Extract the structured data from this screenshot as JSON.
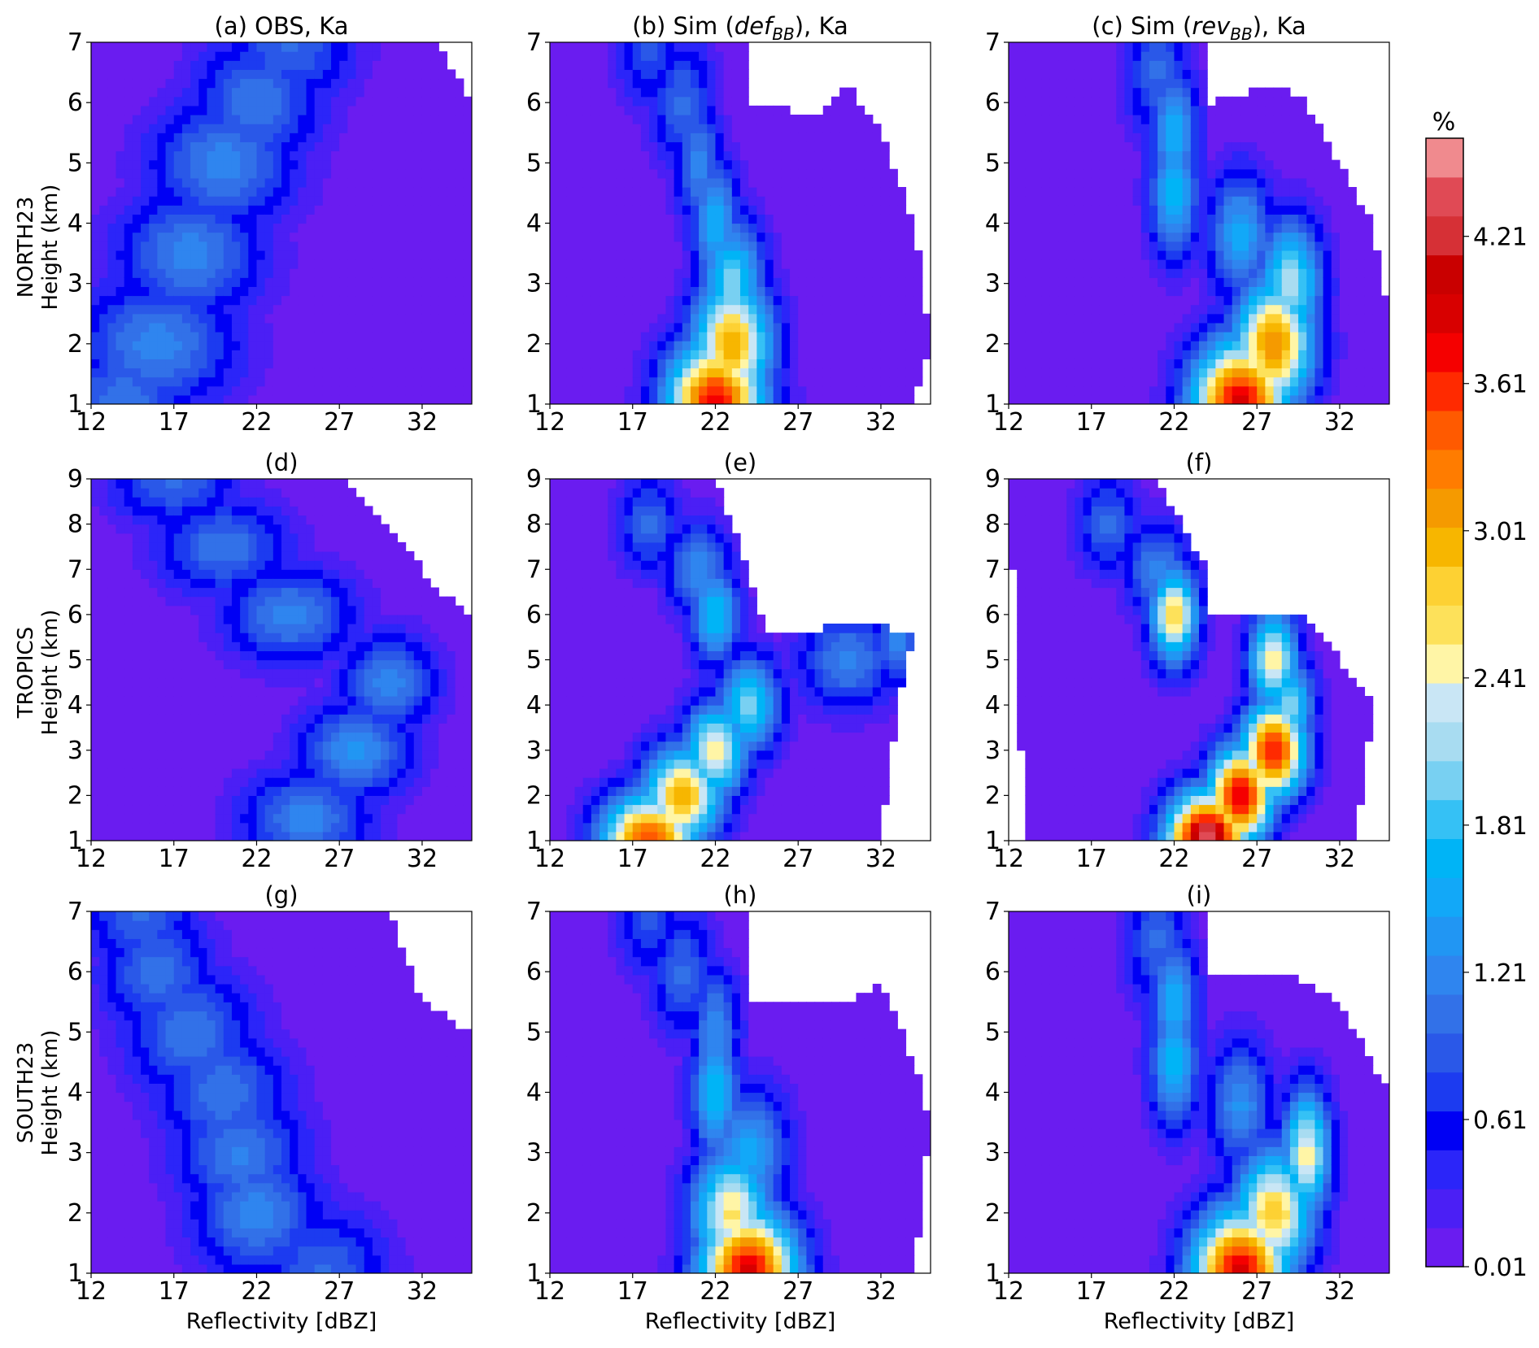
{
  "figure": {
    "row_labels": [
      {
        "region": "NORTH23",
        "axis": "Height (km)"
      },
      {
        "region": "TROPICS",
        "axis": "Height (km)"
      },
      {
        "region": "SOUTH23",
        "axis": "Height (km)"
      }
    ],
    "x_label": "Reflectivity [dBZ]",
    "colorbar": {
      "unit": "%",
      "tick_labels": [
        "0.01",
        "0.61",
        "1.21",
        "1.81",
        "2.41",
        "3.01",
        "3.61",
        "4.21"
      ],
      "tick_values": [
        0.01,
        0.61,
        1.21,
        1.81,
        2.41,
        3.01,
        3.61,
        4.21
      ],
      "range": [
        0.01,
        4.61
      ],
      "levels": 24,
      "colors": [
        "#6a1cf0",
        "#4b1ff5",
        "#2b25f9",
        "#0000f4",
        "#1c3bf0",
        "#2a58e8",
        "#3271e8",
        "#2f85ef",
        "#2196f3",
        "#12a8f8",
        "#00b4f6",
        "#35c1f5",
        "#78d0f2",
        "#a8dcf1",
        "#c9e6f5",
        "#fff5a6",
        "#fde15a",
        "#fdd133",
        "#f7b600",
        "#f59a00",
        "#ff7c00",
        "#ff5a00",
        "#ff2a00",
        "#f50000",
        "#d80000",
        "#c90000",
        "#d63036",
        "#e04a55",
        "#f08a8e"
      ]
    }
  },
  "chart_data": [
    {
      "panel": "a",
      "type": "heatmap",
      "title_parts": [
        {
          "text": "(a) OBS, Ka"
        }
      ],
      "x_ticks": [
        "12",
        "17",
        "22",
        "27",
        "32"
      ],
      "xlim": [
        12,
        35
      ],
      "y_ticks": [
        "1",
        "2",
        "3",
        "4",
        "5",
        "6",
        "7"
      ],
      "ylim": [
        1,
        7
      ],
      "unit": "%",
      "peak": {
        "x": 20,
        "y": 3,
        "value": 1.2
      },
      "ridge": [
        [
          14,
          1
        ],
        [
          16,
          2
        ],
        [
          18,
          3.5
        ],
        [
          20,
          5
        ],
        [
          22,
          6
        ],
        [
          24,
          7
        ]
      ],
      "spread": [
        4,
        5,
        4.5,
        4.5,
        4,
        4
      ],
      "peak_values": [
        1.1,
        1.2,
        1.2,
        1.2,
        1.1,
        1.0
      ],
      "boundary": [
        [
          12,
          1
        ],
        [
          35,
          1
        ],
        [
          35,
          6
        ],
        [
          33,
          7
        ],
        [
          12,
          7
        ]
      ],
      "show_xlabel": false
    },
    {
      "panel": "b",
      "type": "heatmap",
      "title_parts": [
        {
          "text": "(b) Sim ("
        },
        {
          "text": "def",
          "italic": true
        },
        {
          "text": "BB",
          "italic": true,
          "sub": true
        },
        {
          "text": "), Ka"
        }
      ],
      "x_ticks": [
        "12",
        "17",
        "22",
        "27",
        "32"
      ],
      "xlim": [
        12,
        35
      ],
      "y_ticks": [
        "1",
        "2",
        "3",
        "4",
        "5",
        "6",
        "7"
      ],
      "ylim": [
        1,
        7
      ],
      "unit": "%",
      "peak": {
        "x": 22,
        "y": 1,
        "value": 3.8
      },
      "ridge": [
        [
          22,
          1
        ],
        [
          23,
          2
        ],
        [
          23,
          3
        ],
        [
          22,
          4
        ],
        [
          21,
          5
        ],
        [
          20,
          6
        ],
        [
          18,
          7
        ]
      ],
      "spread": [
        3,
        2.5,
        2,
        1.5,
        1.5,
        2,
        2
      ],
      "peak_values": [
        3.8,
        3.0,
        2.0,
        1.6,
        1.2,
        1.0,
        0.9
      ],
      "boundary": [
        [
          12,
          1
        ],
        [
          34,
          1
        ],
        [
          35,
          2
        ],
        [
          34,
          4
        ],
        [
          32,
          5.5
        ],
        [
          30,
          6.3
        ],
        [
          28,
          5.8
        ],
        [
          24,
          6
        ],
        [
          24,
          7
        ],
        [
          12,
          7
        ]
      ],
      "show_xlabel": false
    },
    {
      "panel": "c",
      "type": "heatmap",
      "title_parts": [
        {
          "text": "(c) Sim ("
        },
        {
          "text": "rev",
          "italic": true
        },
        {
          "text": "BB",
          "italic": true,
          "sub": true
        },
        {
          "text": "), Ka"
        }
      ],
      "x_ticks": [
        "12",
        "17",
        "22",
        "27",
        "32"
      ],
      "xlim": [
        12,
        35
      ],
      "y_ticks": [
        "1",
        "2",
        "3",
        "4",
        "5",
        "6",
        "7"
      ],
      "ylim": [
        1,
        7
      ],
      "unit": "%",
      "peak": {
        "x": 26,
        "y": 1,
        "value": 3.9
      },
      "ridge": [
        [
          26,
          1
        ],
        [
          28,
          2
        ],
        [
          29,
          3
        ],
        [
          26,
          3.8
        ],
        [
          22,
          4.5
        ],
        [
          22,
          5.5
        ],
        [
          21,
          6.5
        ]
      ],
      "spread": [
        3,
        2.5,
        2,
        2,
        1.5,
        1.5,
        2
      ],
      "peak_values": [
        3.9,
        3.2,
        2.2,
        1.5,
        1.7,
        1.6,
        1.0
      ],
      "boundary": [
        [
          12,
          1
        ],
        [
          35,
          1
        ],
        [
          35,
          2.5
        ],
        [
          34,
          4
        ],
        [
          32,
          5
        ],
        [
          30,
          6
        ],
        [
          28,
          6.3
        ],
        [
          24,
          6
        ],
        [
          24,
          7
        ],
        [
          12,
          7
        ]
      ],
      "show_xlabel": false
    },
    {
      "panel": "d",
      "type": "heatmap",
      "title_parts": [
        {
          "text": "(d)"
        }
      ],
      "x_ticks": [
        "12",
        "17",
        "22",
        "27",
        "32"
      ],
      "xlim": [
        12,
        35
      ],
      "y_ticks": [
        "1",
        "2",
        "3",
        "4",
        "5",
        "6",
        "7",
        "8",
        "9"
      ],
      "ylim": [
        1,
        9
      ],
      "unit": "%",
      "peak": {
        "x": 28,
        "y": 3,
        "value": 1.3
      },
      "ridge": [
        [
          25,
          1.5
        ],
        [
          28,
          3
        ],
        [
          30,
          4.5
        ],
        [
          24,
          6
        ],
        [
          20,
          7.5
        ],
        [
          17,
          9
        ]
      ],
      "spread": [
        4,
        3.5,
        3,
        4,
        4,
        4
      ],
      "peak_values": [
        1.2,
        1.3,
        1.2,
        1.2,
        1.1,
        1.0
      ],
      "boundary": [
        [
          12,
          1
        ],
        [
          35,
          1
        ],
        [
          35,
          6
        ],
        [
          33,
          6.5
        ],
        [
          30,
          8
        ],
        [
          27,
          9
        ],
        [
          12,
          9
        ]
      ],
      "show_xlabel": false
    },
    {
      "panel": "e",
      "type": "heatmap",
      "title_parts": [
        {
          "text": "(e)"
        }
      ],
      "x_ticks": [
        "12",
        "17",
        "22",
        "27",
        "32"
      ],
      "xlim": [
        12,
        35
      ],
      "y_ticks": [
        "1",
        "2",
        "3",
        "4",
        "5",
        "6",
        "7",
        "8",
        "9"
      ],
      "ylim": [
        1,
        9
      ],
      "unit": "%",
      "peak": {
        "x": 18,
        "y": 1,
        "value": 3.5
      },
      "ridge": [
        [
          18,
          1
        ],
        [
          20,
          2
        ],
        [
          22,
          3
        ],
        [
          24,
          4
        ],
        [
          30,
          5
        ],
        [
          33,
          5.5
        ],
        [
          22,
          6
        ],
        [
          21,
          7
        ],
        [
          18,
          8
        ]
      ],
      "spread": [
        3,
        2.5,
        2,
        2,
        3,
        1.5,
        1.5,
        2,
        2
      ],
      "peak_values": [
        3.5,
        3.0,
        2.5,
        2.0,
        1.2,
        1.2,
        1.8,
        1.3,
        1.0
      ],
      "boundary": [
        [
          12,
          1
        ],
        [
          32,
          1
        ],
        [
          33,
          4
        ],
        [
          34,
          5.5
        ],
        [
          32,
          5.8
        ],
        [
          25,
          5.6
        ],
        [
          24,
          7
        ],
        [
          22,
          9
        ],
        [
          12,
          9
        ]
      ],
      "show_xlabel": false
    },
    {
      "panel": "f",
      "type": "heatmap",
      "title_parts": [
        {
          "text": "(f)"
        }
      ],
      "x_ticks": [
        "12",
        "17",
        "22",
        "27",
        "32"
      ],
      "xlim": [
        12,
        35
      ],
      "y_ticks": [
        "1",
        "2",
        "3",
        "4",
        "5",
        "6",
        "7",
        "8",
        "9"
      ],
      "ylim": [
        1,
        9
      ],
      "unit": "%",
      "peak": {
        "x": 24,
        "y": 1,
        "value": 4.5
      },
      "ridge": [
        [
          24,
          1
        ],
        [
          26,
          2
        ],
        [
          28,
          3
        ],
        [
          29,
          4
        ],
        [
          28,
          5
        ],
        [
          22,
          6
        ],
        [
          21,
          7
        ],
        [
          18,
          8
        ]
      ],
      "spread": [
        2.5,
        2,
        2,
        1.5,
        1.5,
        1.5,
        2,
        2
      ],
      "peak_values": [
        4.5,
        3.9,
        3.7,
        2.0,
        2.6,
        2.7,
        1.2,
        1.0
      ],
      "boundary": [
        [
          13,
          1
        ],
        [
          33,
          1
        ],
        [
          34,
          4
        ],
        [
          30,
          6
        ],
        [
          24,
          6
        ],
        [
          24,
          7
        ],
        [
          21,
          9
        ],
        [
          12,
          9
        ]
      ],
      "show_xlabel": false
    },
    {
      "panel": "g",
      "type": "heatmap",
      "title_parts": [
        {
          "text": "(g)"
        }
      ],
      "x_ticks": [
        "12",
        "17",
        "22",
        "27",
        "32"
      ],
      "xlim": [
        12,
        35
      ],
      "y_ticks": [
        "1",
        "2",
        "3",
        "4",
        "5",
        "6",
        "7"
      ],
      "ylim": [
        1,
        7
      ],
      "unit": "%",
      "peak": {
        "x": 22,
        "y": 2,
        "value": 1.2
      },
      "ridge": [
        [
          26,
          1
        ],
        [
          22,
          2
        ],
        [
          21,
          3
        ],
        [
          20,
          4
        ],
        [
          18,
          5
        ],
        [
          16,
          6
        ],
        [
          15,
          7
        ]
      ],
      "spread": [
        4,
        4,
        4,
        4,
        4,
        3.5,
        3.5
      ],
      "peak_values": [
        1.0,
        1.2,
        1.15,
        1.1,
        1.1,
        1.05,
        1.0
      ],
      "boundary": [
        [
          12,
          1
        ],
        [
          35,
          1
        ],
        [
          35,
          5
        ],
        [
          32,
          5.5
        ],
        [
          30,
          7
        ],
        [
          12,
          7
        ]
      ],
      "show_xlabel": true
    },
    {
      "panel": "h",
      "type": "heatmap",
      "title_parts": [
        {
          "text": "(h)"
        }
      ],
      "x_ticks": [
        "12",
        "17",
        "22",
        "27",
        "32"
      ],
      "xlim": [
        12,
        35
      ],
      "y_ticks": [
        "1",
        "2",
        "3",
        "4",
        "5",
        "6",
        "7"
      ],
      "ylim": [
        1,
        7
      ],
      "unit": "%",
      "peak": {
        "x": 24,
        "y": 1,
        "value": 3.9
      },
      "ridge": [
        [
          24,
          1
        ],
        [
          23,
          2
        ],
        [
          24,
          3
        ],
        [
          22,
          4
        ],
        [
          22,
          5
        ],
        [
          20,
          6
        ],
        [
          18,
          7
        ]
      ],
      "spread": [
        3,
        2.5,
        2.5,
        1.5,
        1.5,
        2,
        2
      ],
      "peak_values": [
        3.9,
        2.6,
        1.5,
        1.8,
        1.3,
        1.0,
        0.9
      ],
      "boundary": [
        [
          12,
          1
        ],
        [
          34,
          1
        ],
        [
          35,
          3.5
        ],
        [
          34,
          4.5
        ],
        [
          32,
          5.8
        ],
        [
          30,
          5.5
        ],
        [
          24,
          5.5
        ],
        [
          24,
          7
        ],
        [
          12,
          7
        ]
      ],
      "show_xlabel": true
    },
    {
      "panel": "i",
      "type": "heatmap",
      "title_parts": [
        {
          "text": "(i)"
        }
      ],
      "x_ticks": [
        "12",
        "17",
        "22",
        "27",
        "32"
      ],
      "xlim": [
        12,
        35
      ],
      "y_ticks": [
        "1",
        "2",
        "3",
        "4",
        "5",
        "6",
        "7"
      ],
      "ylim": [
        1,
        7
      ],
      "unit": "%",
      "peak": {
        "x": 26,
        "y": 1,
        "value": 3.9
      },
      "ridge": [
        [
          26,
          1
        ],
        [
          28,
          2
        ],
        [
          30,
          3
        ],
        [
          26,
          3.8
        ],
        [
          22,
          4.5
        ],
        [
          22,
          5.5
        ],
        [
          21,
          6.5
        ]
      ],
      "spread": [
        3,
        2.5,
        1.5,
        2,
        1.5,
        1.5,
        2
      ],
      "peak_values": [
        3.9,
        2.8,
        2.5,
        1.3,
        1.7,
        1.6,
        1.0
      ],
      "boundary": [
        [
          12,
          1
        ],
        [
          35,
          1
        ],
        [
          35,
          4
        ],
        [
          32,
          5.5
        ],
        [
          29,
          6
        ],
        [
          24,
          6
        ],
        [
          24,
          7
        ],
        [
          12,
          7
        ]
      ],
      "show_xlabel": true
    }
  ]
}
